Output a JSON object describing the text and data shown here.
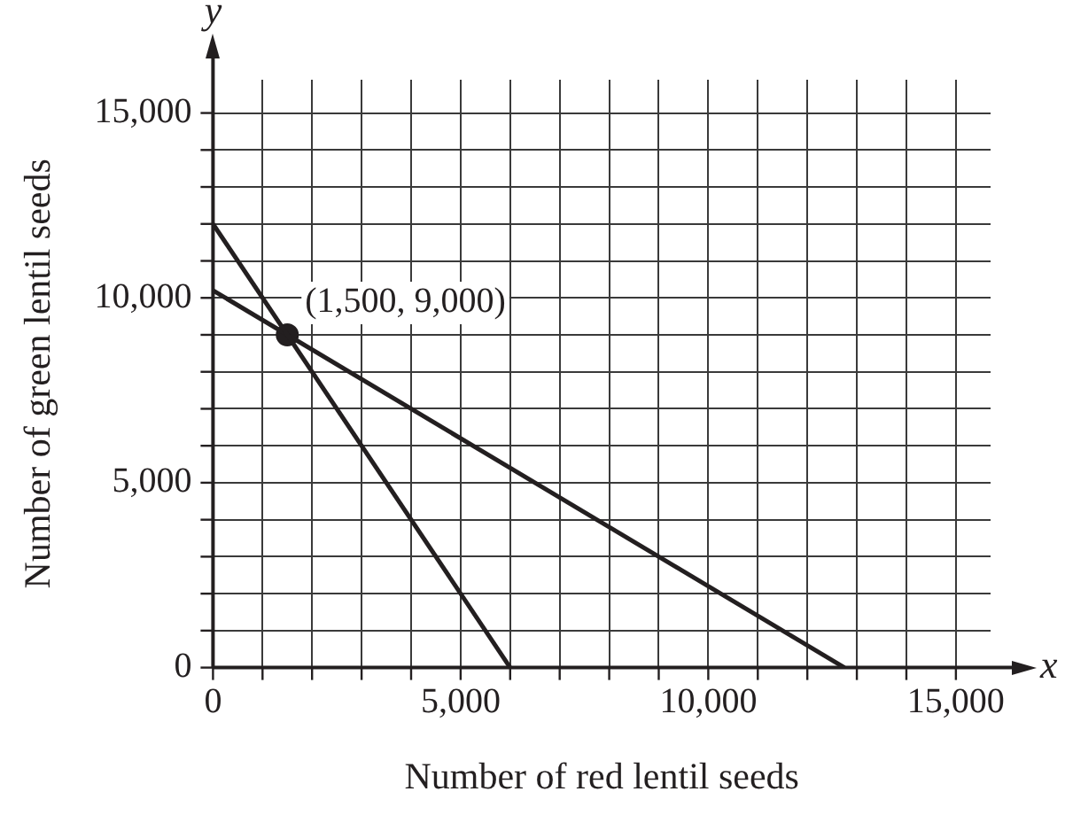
{
  "chart_data": {
    "type": "line",
    "xlabel": "Number of red lentil seeds",
    "ylabel": "Number of green lentil seeds",
    "xlim": [
      0,
      15700
    ],
    "ylim": [
      0,
      15900
    ],
    "xticks": [
      {
        "value": 0,
        "label": "0"
      },
      {
        "value": 1000,
        "label": null
      },
      {
        "value": 2000,
        "label": null
      },
      {
        "value": 3000,
        "label": null
      },
      {
        "value": 4000,
        "label": null
      },
      {
        "value": 5000,
        "label": "5,000"
      },
      {
        "value": 6000,
        "label": null
      },
      {
        "value": 7000,
        "label": null
      },
      {
        "value": 8000,
        "label": null
      },
      {
        "value": 9000,
        "label": null
      },
      {
        "value": 10000,
        "label": "10,000"
      },
      {
        "value": 11000,
        "label": null
      },
      {
        "value": 12000,
        "label": null
      },
      {
        "value": 13000,
        "label": null
      },
      {
        "value": 14000,
        "label": null
      },
      {
        "value": 15000,
        "label": "15,000"
      }
    ],
    "yticks": [
      {
        "value": 0,
        "label": "0"
      },
      {
        "value": 1000,
        "label": null
      },
      {
        "value": 2000,
        "label": null
      },
      {
        "value": 3000,
        "label": null
      },
      {
        "value": 4000,
        "label": null
      },
      {
        "value": 5000,
        "label": "5,000"
      },
      {
        "value": 6000,
        "label": null
      },
      {
        "value": 7000,
        "label": null
      },
      {
        "value": 8000,
        "label": null
      },
      {
        "value": 9000,
        "label": null
      },
      {
        "value": 10000,
        "label": "10,000"
      },
      {
        "value": 11000,
        "label": null
      },
      {
        "value": 12000,
        "label": null
      },
      {
        "value": 13000,
        "label": null
      },
      {
        "value": 14000,
        "label": null
      },
      {
        "value": 15000,
        "label": "15,000"
      }
    ],
    "grid": true,
    "legend": false,
    "series": [
      {
        "color": "#231f20",
        "x": [
          0,
          6000
        ],
        "values": [
          12000,
          0
        ]
      },
      {
        "color": "#231f20",
        "x": [
          0,
          12750
        ],
        "values": [
          10200,
          0
        ]
      },
      {
        "type": "scatter",
        "color": "#231f20",
        "x": [
          1500
        ],
        "values": [
          9000
        ]
      }
    ],
    "annotations": [
      {
        "text": "(1,500, 9,000)",
        "x": 1500,
        "y": 9000
      },
      "y",
      "x"
    ]
  }
}
